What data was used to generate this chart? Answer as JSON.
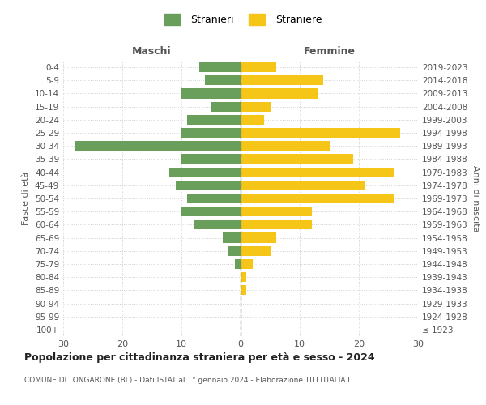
{
  "age_groups": [
    "100+",
    "95-99",
    "90-94",
    "85-89",
    "80-84",
    "75-79",
    "70-74",
    "65-69",
    "60-64",
    "55-59",
    "50-54",
    "45-49",
    "40-44",
    "35-39",
    "30-34",
    "25-29",
    "20-24",
    "15-19",
    "10-14",
    "5-9",
    "0-4"
  ],
  "anni_nascita": [
    "≤ 1923",
    "1924-1928",
    "1929-1933",
    "1934-1938",
    "1939-1943",
    "1944-1948",
    "1949-1953",
    "1954-1958",
    "1959-1963",
    "1964-1968",
    "1969-1973",
    "1974-1978",
    "1979-1983",
    "1984-1988",
    "1989-1993",
    "1994-1998",
    "1999-2003",
    "2004-2008",
    "2009-2013",
    "2014-2018",
    "2019-2023"
  ],
  "maschi": [
    0,
    0,
    0,
    0,
    0,
    1,
    2,
    3,
    8,
    10,
    9,
    11,
    12,
    10,
    28,
    10,
    9,
    5,
    10,
    6,
    7
  ],
  "femmine": [
    0,
    0,
    0,
    1,
    1,
    2,
    5,
    6,
    12,
    12,
    26,
    21,
    26,
    19,
    15,
    27,
    4,
    5,
    13,
    14,
    6
  ],
  "male_color": "#6a9e5b",
  "female_color": "#f5c518",
  "title": "Popolazione per cittadinanza straniera per età e sesso - 2024",
  "subtitle": "COMUNE DI LONGARONE (BL) - Dati ISTAT al 1° gennaio 2024 - Elaborazione TUTTITALIA.IT",
  "xlabel_left": "Maschi",
  "xlabel_right": "Femmine",
  "ylabel_left": "Fasce di età",
  "ylabel_right": "Anni di nascita",
  "legend_male": "Stranieri",
  "legend_female": "Straniere",
  "xlim": 30,
  "background_color": "#ffffff",
  "grid_color": "#d0d0d0",
  "bar_height": 0.75
}
